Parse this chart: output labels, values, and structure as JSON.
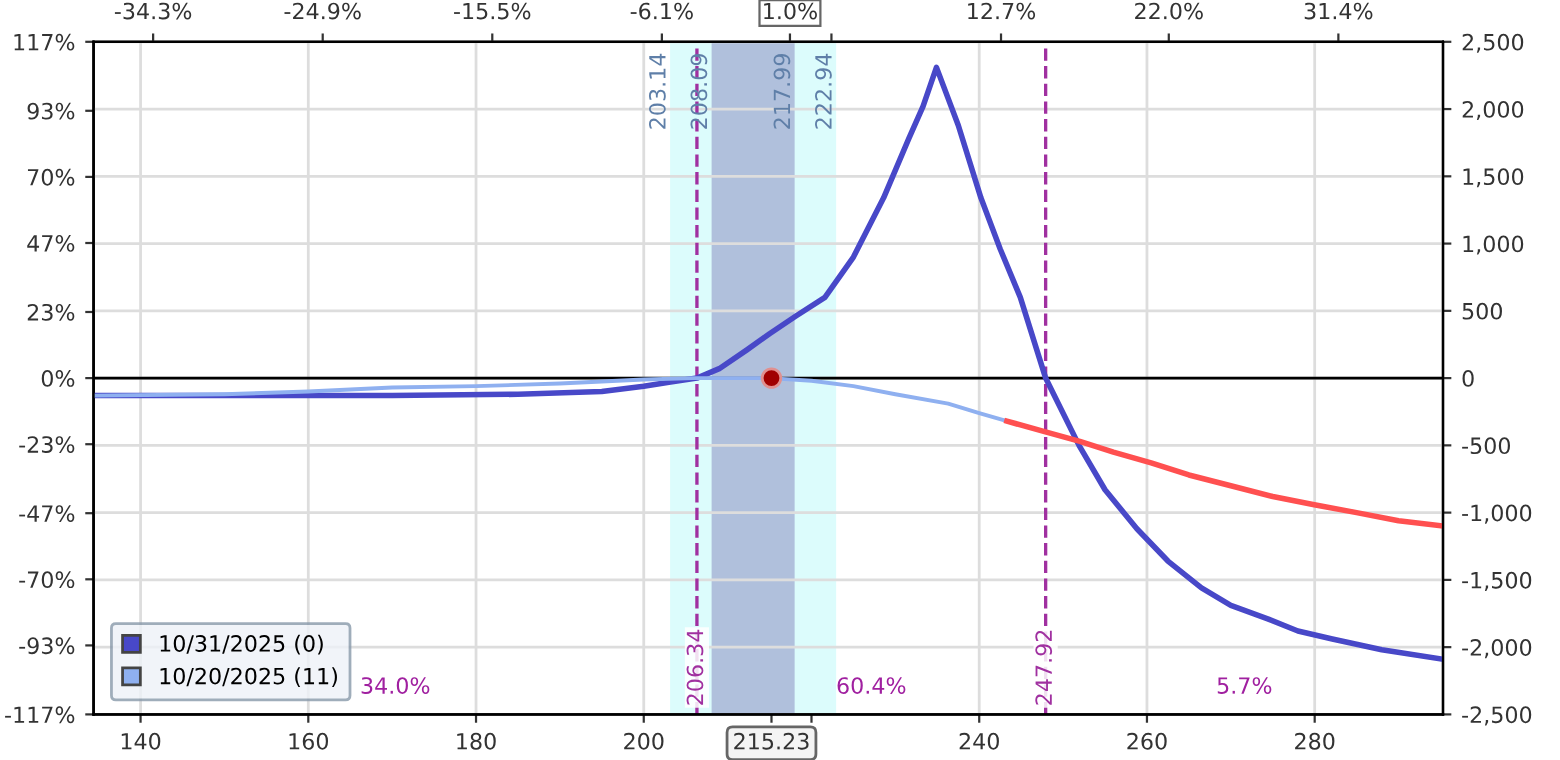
{
  "chart_data": {
    "type": "line",
    "xlim": [
      134.4,
      295.3
    ],
    "xticks": [
      140,
      160,
      180,
      200,
      {
        "value": 215.23,
        "label": "215.23"
      },
      {
        "value": 220,
        "label": null
      },
      240,
      260,
      280
    ],
    "x2lim": [
      -37.6,
      37.2
    ],
    "x2ticks": [
      {
        "value": -34.3,
        "label": "-34.3%"
      },
      {
        "value": -24.9,
        "label": "-24.9%"
      },
      {
        "value": -15.5,
        "label": "-15.5%"
      },
      {
        "value": -6.1,
        "label": "-6.1%"
      },
      {
        "value": 3.3,
        "label": null
      },
      {
        "value": 1.0,
        "label": "1.0%"
      },
      {
        "value": 12.7,
        "label": "12.7%"
      },
      {
        "value": 22.0,
        "label": "22.0%"
      },
      {
        "value": 31.4,
        "label": "31.4%"
      }
    ],
    "ylim": [
      -117,
      117
    ],
    "yticks": [
      {
        "value": -117,
        "label": "-117%"
      },
      {
        "value": -93,
        "label": "-93%"
      },
      {
        "value": -70,
        "label": "-70%"
      },
      {
        "value": -47,
        "label": "-47%"
      },
      {
        "value": -23,
        "label": "-23%"
      },
      {
        "value": 0,
        "label": "0%"
      },
      {
        "value": 23,
        "label": "23%"
      },
      {
        "value": 47,
        "label": "47%"
      },
      {
        "value": 70,
        "label": "70%"
      },
      {
        "value": 93,
        "label": "93%"
      },
      {
        "value": 117,
        "label": "117%"
      }
    ],
    "y2lim": [
      -2500,
      2500
    ],
    "y2ticks": [
      {
        "value": -2500,
        "label": "-2,500"
      },
      {
        "value": -2000,
        "label": "-2,000"
      },
      {
        "value": -1500,
        "label": "-1,500"
      },
      {
        "value": -1000,
        "label": "-1,000"
      },
      -500,
      0,
      500,
      {
        "value": 1000,
        "label": "1,000"
      },
      {
        "value": 1500,
        "label": "1,500"
      },
      {
        "value": 2000,
        "label": "2,000"
      },
      {
        "value": 2500,
        "label": "2,500"
      }
    ],
    "series": [
      {
        "name": "10/31/2025 (0)",
        "color": "#4848c8",
        "axis": "y2",
        "x": [
          134.4,
          150,
          170,
          185,
          195,
          200,
          203,
          206.34,
          209,
          212.3,
          215,
          218.1,
          221.6,
          225,
          228.6,
          231.6,
          233.3,
          234.9,
          237.5,
          240.2,
          242.5,
          244.9,
          247.92,
          251.9,
          255,
          258.8,
          262.5,
          266.5,
          270,
          274.4,
          278,
          282.1,
          288,
          295.3
        ],
        "values": [
          -130,
          -130,
          -130,
          -120,
          -100,
          -60,
          -30,
          0,
          70,
          210,
          330,
          460,
          600,
          900,
          1340,
          1780,
          2020,
          2310,
          1880,
          1340,
          960,
          600,
          0,
          -500,
          -830,
          -1120,
          -1360,
          -1560,
          -1690,
          -1790,
          -1880,
          -1940,
          -2020,
          -2090
        ]
      },
      {
        "name": "10/20/2025 (11)",
        "color": "#8fb0f0",
        "axis": "y2",
        "x": [
          134.4,
          150,
          160,
          170,
          180,
          190,
          200,
          206,
          210,
          215,
          220,
          225,
          230,
          236.3,
          240,
          243.3
        ],
        "values": [
          -130,
          -120,
          -100,
          -70,
          -60,
          -40,
          -10,
          0,
          0,
          0,
          -20,
          -60,
          -120,
          -190,
          -260,
          -320
        ]
      },
      {
        "color": "#ff5050",
        "axis": "y2",
        "x": [
          243.3,
          247.9,
          252,
          256,
          260.5,
          265,
          270,
          275,
          279.8,
          285,
          290,
          295.3
        ],
        "values": [
          -320,
          -400,
          -470,
          -550,
          -630,
          -720,
          -800,
          -880,
          -940,
          -1000,
          -1060,
          -1100
        ]
      },
      {
        "type": "scatter",
        "marker": "circle",
        "color": "#a00000",
        "axis": "y2",
        "x": [
          215.23
        ],
        "values": [
          0
        ]
      }
    ],
    "bands": [
      {
        "axis": "x",
        "from": 203.14,
        "to": 222.94,
        "color": "#dcfcfc"
      },
      {
        "axis": "x",
        "from": 208.09,
        "to": 217.99,
        "color": "#b0c0dc"
      }
    ],
    "ref_lines": [
      {
        "axis": "x",
        "value": 206.34,
        "label": "206.34",
        "color": "#a030a0",
        "line_style": "dashed"
      },
      {
        "axis": "x",
        "value": 247.92,
        "label": "247.92",
        "color": "#a030a0",
        "line_style": "dashed"
      },
      {
        "axis": "y2",
        "value": 0,
        "color": "#000000",
        "line_style": "solid"
      }
    ],
    "annotations": [
      "34.0%",
      "60.4%",
      "5.7%",
      "203.14",
      "208.09",
      "217.99",
      "222.94"
    ],
    "grid": true,
    "legend": "bottom left",
    "line_style": "solid"
  }
}
